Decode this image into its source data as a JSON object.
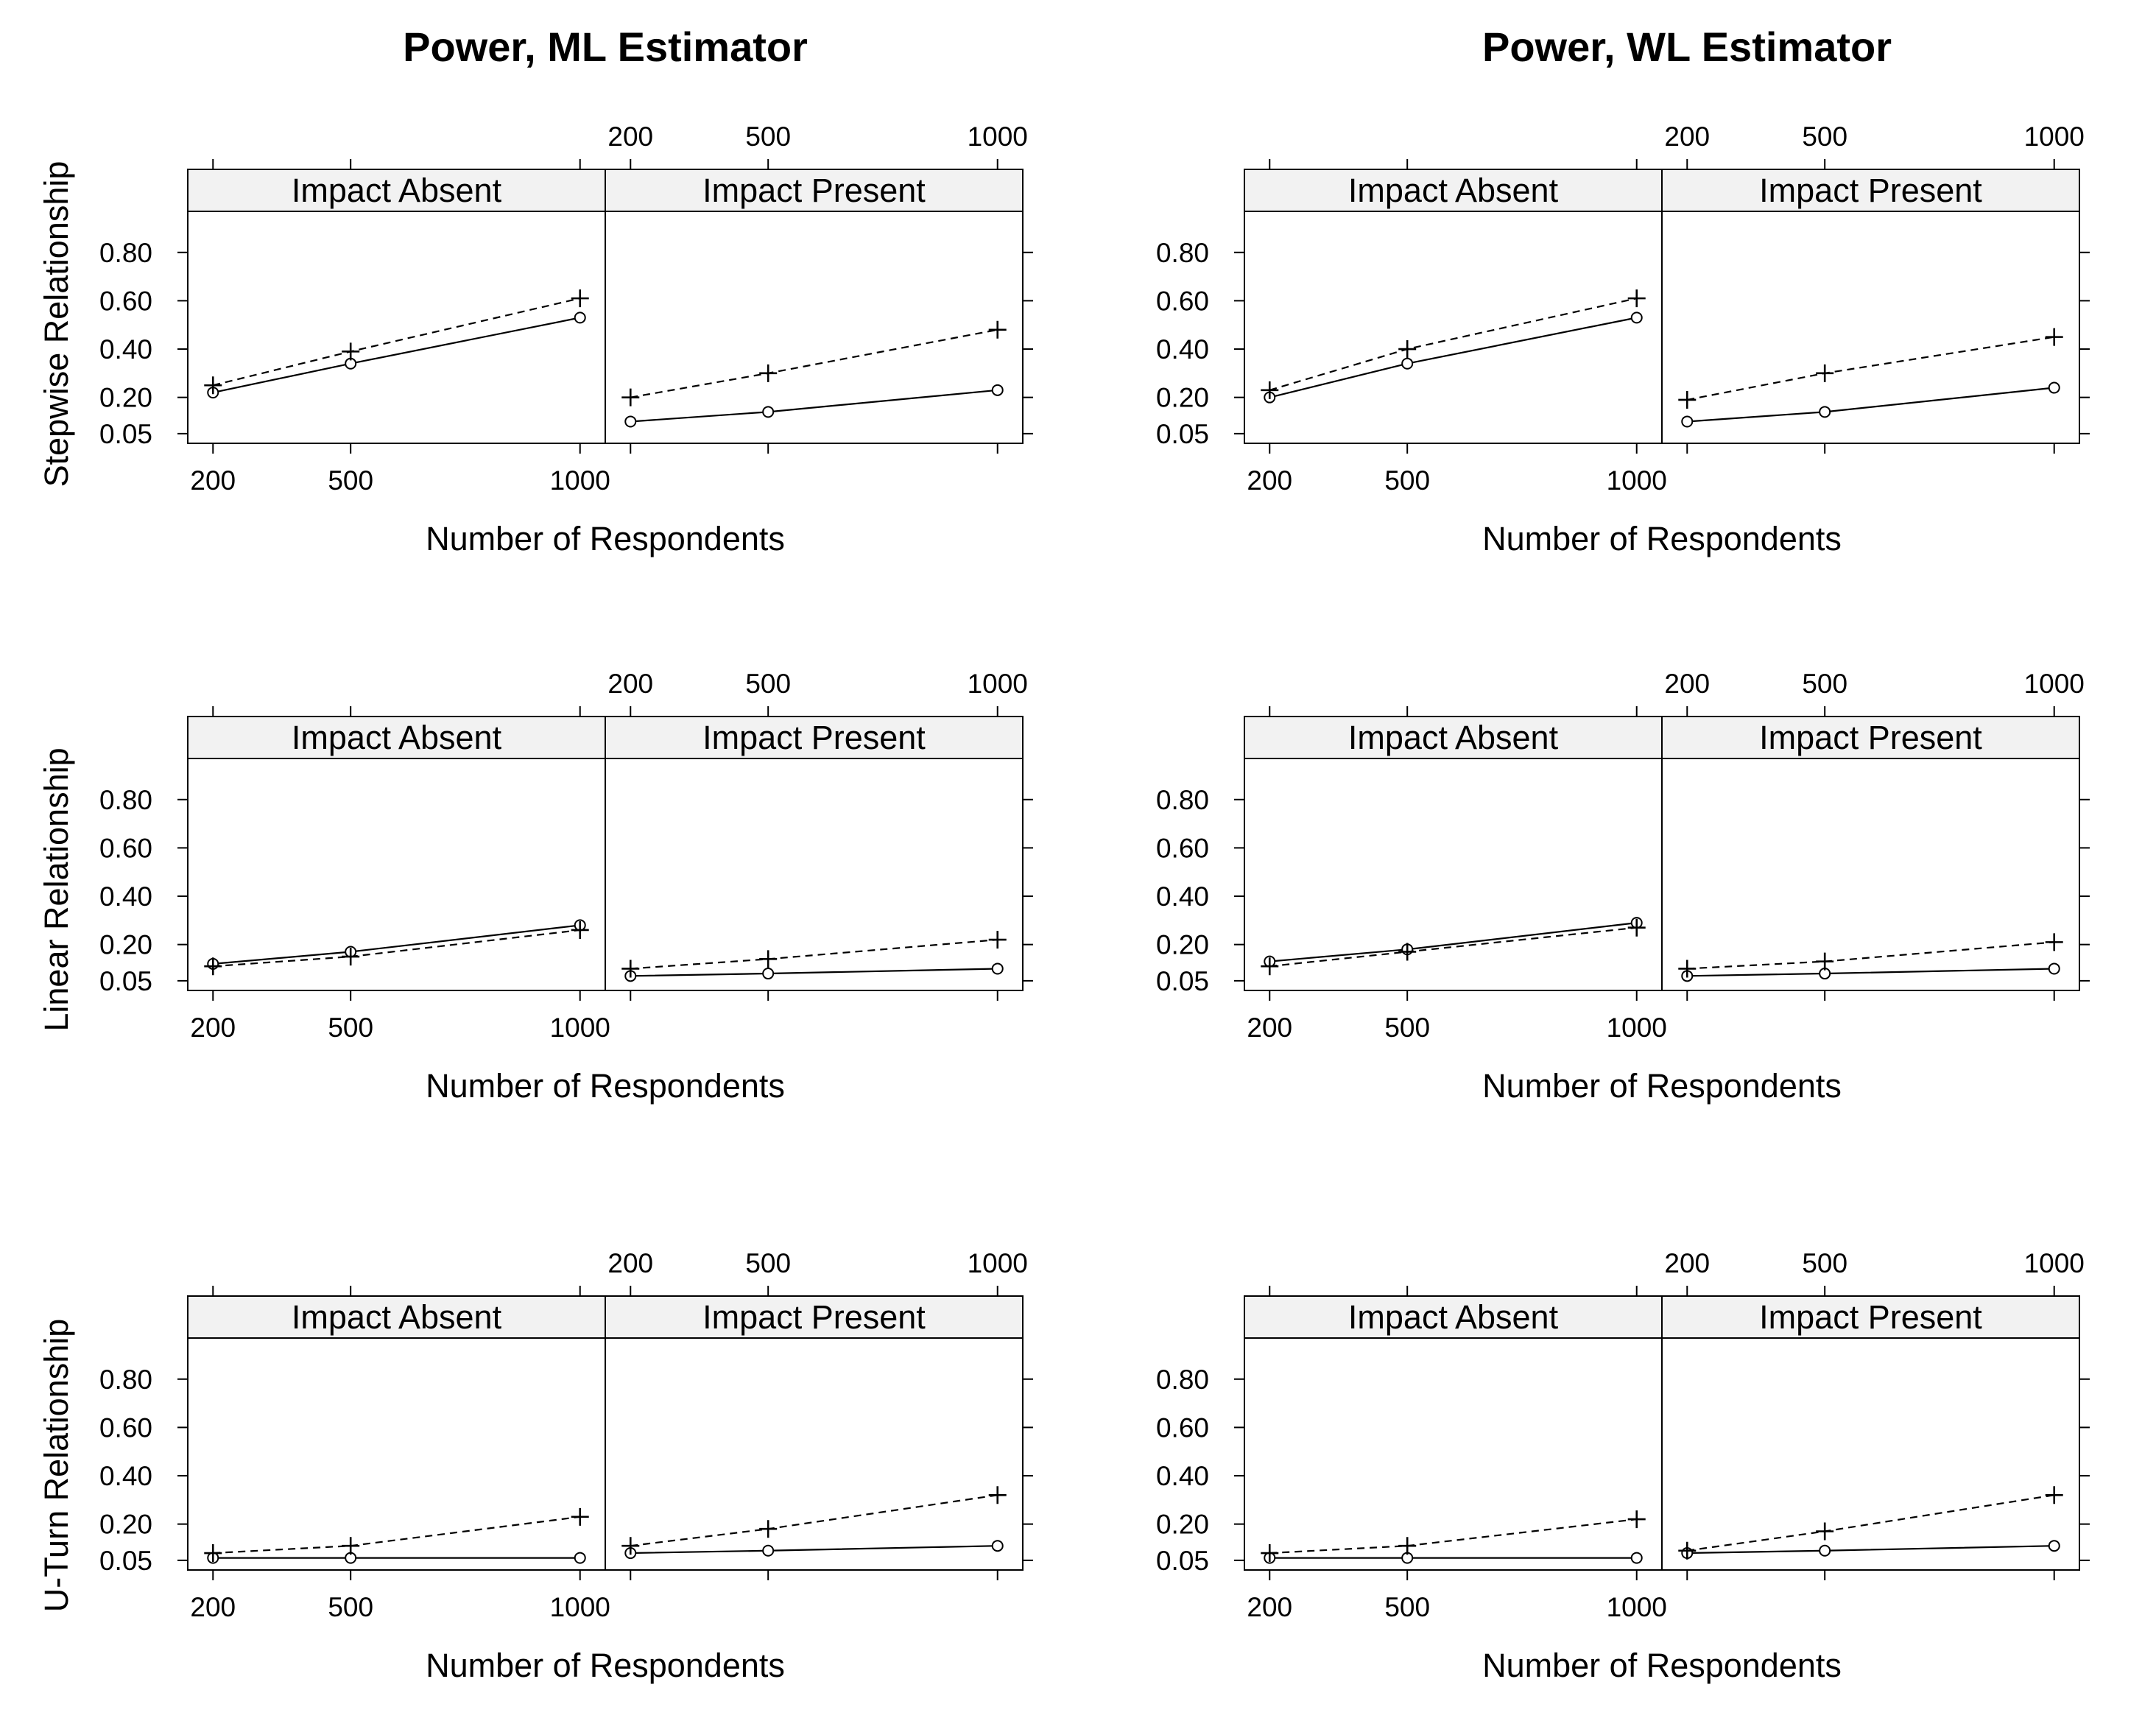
{
  "titles": [
    "Power, ML Estimator",
    "Power, WL Estimator"
  ],
  "row_labels": [
    "Stepwise Relationship",
    "Linear Relationship",
    "U-Turn Relationship"
  ],
  "chart_data": {
    "type": "line",
    "layout": "3 rows x 2 columns of lattice plots, each with two panels",
    "xlabel": "Number of Respondents",
    "x": [
      200,
      500,
      1000
    ],
    "x_ticks": [
      "200",
      "500",
      "1000"
    ],
    "xlim": [
      145,
      1055
    ],
    "y_ticks": [
      0.05,
      0.2,
      0.4,
      0.6,
      0.8
    ],
    "y_tick_labels": [
      "0.05",
      "0.20",
      "0.40",
      "0.60",
      "0.80"
    ],
    "ylim": [
      0.01,
      0.97
    ],
    "panel_labels": [
      "Impact Absent",
      "Impact Present"
    ],
    "series_styles": [
      {
        "name": "circle",
        "marker": "circle",
        "line": "solid"
      },
      {
        "name": "plus",
        "marker": "plus",
        "line": "dashed"
      }
    ],
    "plots": [
      {
        "column": "Power, ML Estimator",
        "row": "Stepwise Relationship",
        "panels": [
          {
            "label": "Impact Absent",
            "series": [
              {
                "name": "circle",
                "values": [
                  0.22,
                  0.34,
                  0.53
                ]
              },
              {
                "name": "plus",
                "values": [
                  0.25,
                  0.39,
                  0.61
                ]
              }
            ]
          },
          {
            "label": "Impact Present",
            "series": [
              {
                "name": "circle",
                "values": [
                  0.1,
                  0.14,
                  0.23
                ]
              },
              {
                "name": "plus",
                "values": [
                  0.2,
                  0.3,
                  0.48
                ]
              }
            ]
          }
        ]
      },
      {
        "column": "Power, WL Estimator",
        "row": "Stepwise Relationship",
        "panels": [
          {
            "label": "Impact Absent",
            "series": [
              {
                "name": "circle",
                "values": [
                  0.2,
                  0.34,
                  0.53
                ]
              },
              {
                "name": "plus",
                "values": [
                  0.23,
                  0.4,
                  0.61
                ]
              }
            ]
          },
          {
            "label": "Impact Present",
            "series": [
              {
                "name": "circle",
                "values": [
                  0.1,
                  0.14,
                  0.24
                ]
              },
              {
                "name": "plus",
                "values": [
                  0.19,
                  0.3,
                  0.45
                ]
              }
            ]
          }
        ]
      },
      {
        "column": "Power, ML Estimator",
        "row": "Linear Relationship",
        "panels": [
          {
            "label": "Impact Absent",
            "series": [
              {
                "name": "circle",
                "values": [
                  0.12,
                  0.17,
                  0.28
                ]
              },
              {
                "name": "plus",
                "values": [
                  0.11,
                  0.15,
                  0.26
                ]
              }
            ]
          },
          {
            "label": "Impact Present",
            "series": [
              {
                "name": "circle",
                "values": [
                  0.07,
                  0.08,
                  0.1
                ]
              },
              {
                "name": "plus",
                "values": [
                  0.1,
                  0.14,
                  0.22
                ]
              }
            ]
          }
        ]
      },
      {
        "column": "Power, WL Estimator",
        "row": "Linear Relationship",
        "panels": [
          {
            "label": "Impact Absent",
            "series": [
              {
                "name": "circle",
                "values": [
                  0.13,
                  0.18,
                  0.29
                ]
              },
              {
                "name": "plus",
                "values": [
                  0.11,
                  0.17,
                  0.27
                ]
              }
            ]
          },
          {
            "label": "Impact Present",
            "series": [
              {
                "name": "circle",
                "values": [
                  0.07,
                  0.08,
                  0.1
                ]
              },
              {
                "name": "plus",
                "values": [
                  0.1,
                  0.13,
                  0.21
                ]
              }
            ]
          }
        ]
      },
      {
        "column": "Power, ML Estimator",
        "row": "U-Turn Relationship",
        "panels": [
          {
            "label": "Impact Absent",
            "series": [
              {
                "name": "circle",
                "values": [
                  0.06,
                  0.06,
                  0.06
                ]
              },
              {
                "name": "plus",
                "values": [
                  0.08,
                  0.11,
                  0.23
                ]
              }
            ]
          },
          {
            "label": "Impact Present",
            "series": [
              {
                "name": "circle",
                "values": [
                  0.08,
                  0.09,
                  0.11
                ]
              },
              {
                "name": "plus",
                "values": [
                  0.11,
                  0.18,
                  0.32
                ]
              }
            ]
          }
        ]
      },
      {
        "column": "Power, WL Estimator",
        "row": "U-Turn Relationship",
        "panels": [
          {
            "label": "Impact Absent",
            "series": [
              {
                "name": "circle",
                "values": [
                  0.06,
                  0.06,
                  0.06
                ]
              },
              {
                "name": "plus",
                "values": [
                  0.08,
                  0.11,
                  0.22
                ]
              }
            ]
          },
          {
            "label": "Impact Present",
            "series": [
              {
                "name": "circle",
                "values": [
                  0.08,
                  0.09,
                  0.11
                ]
              },
              {
                "name": "plus",
                "values": [
                  0.09,
                  0.17,
                  0.32
                ]
              }
            ]
          }
        ]
      }
    ]
  }
}
